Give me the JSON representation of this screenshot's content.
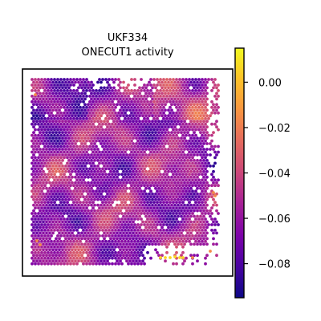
{
  "chart_data": {
    "type": "heatmap",
    "title_line1": "UKF334",
    "title_line2": "ONECUT1 activity",
    "xlabel": "",
    "ylabel": "",
    "colormap": "plasma",
    "colorbar": {
      "range": [
        -0.095,
        0.015
      ],
      "ticks": [
        0.0,
        -0.02,
        -0.04,
        -0.06,
        -0.08
      ],
      "tick_labels": [
        "0.00",
        "−0.02",
        "−0.04",
        "−0.06",
        "−0.08"
      ]
    },
    "spatial_spots": {
      "description_value_range": [
        -0.095,
        0.015
      ],
      "hot_spots": [
        {
          "x": 0.52,
          "y": 0.08,
          "value": 0.012
        },
        {
          "x": 0.5,
          "y": 0.09,
          "value": 0.01
        },
        {
          "x": 0.62,
          "y": 0.97,
          "value": -0.01
        },
        {
          "x": 0.88,
          "y": 0.9,
          "value": -0.02
        },
        {
          "x": 0.06,
          "y": 0.9,
          "value": -0.035
        }
      ]
    },
    "grid": false,
    "colors": {
      "frame": "#000000",
      "background": "#ffffff"
    }
  }
}
